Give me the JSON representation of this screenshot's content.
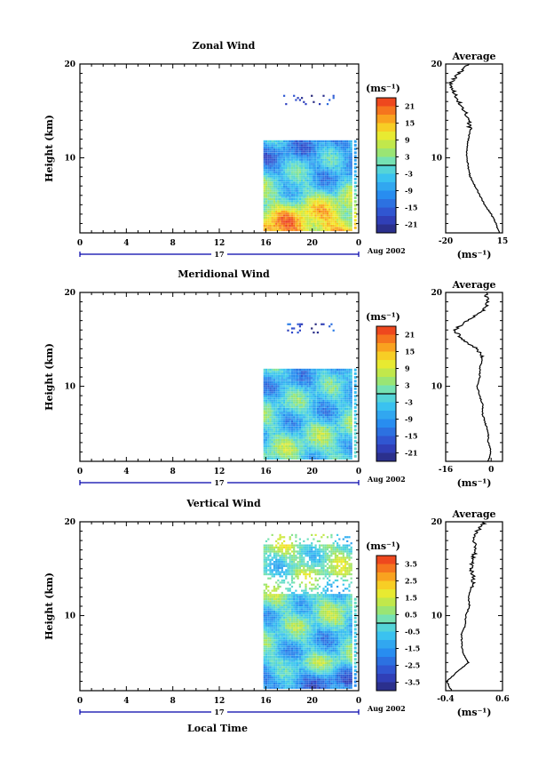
{
  "figure": {
    "date_label": "Aug 2002",
    "day_label": "17",
    "x_axis_label": "Local Time"
  },
  "panels": [
    {
      "key": "zonal",
      "title": "Zonal Wind",
      "ylabel": "Height (km)",
      "y_ticks": [
        "20",
        "10"
      ],
      "x_ticks": [
        "0",
        "4",
        "8",
        "12",
        "16",
        "20",
        "0"
      ],
      "unit_label": "(ms⁻¹)",
      "colorbar_ticks": [
        "21",
        "15",
        "9",
        "3",
        "-3",
        "-9",
        "-15",
        "-21"
      ],
      "profile_title": "Average",
      "profile_y_ticks": [
        "20",
        "10"
      ],
      "profile_x_ticks": [
        "-20",
        "15"
      ],
      "profile_unit": "(ms⁻¹)"
    },
    {
      "key": "meridional",
      "title": "Meridional Wind",
      "ylabel": "Height (km)",
      "y_ticks": [
        "20",
        "10"
      ],
      "x_ticks": [
        "0",
        "4",
        "8",
        "12",
        "16",
        "20",
        "0"
      ],
      "unit_label": "(ms⁻¹)",
      "colorbar_ticks": [
        "21",
        "15",
        "9",
        "3",
        "-3",
        "-9",
        "-15",
        "-21"
      ],
      "profile_title": "Average",
      "profile_y_ticks": [
        "20",
        "10"
      ],
      "profile_x_ticks": [
        "-16",
        "0"
      ],
      "profile_unit": "(ms⁻¹)"
    },
    {
      "key": "vertical",
      "title": "Vertical Wind",
      "ylabel": "Height (km)",
      "y_ticks": [
        "20",
        "10"
      ],
      "x_ticks": [
        "0",
        "4",
        "8",
        "12",
        "16",
        "20",
        "0"
      ],
      "unit_label": "(ms⁻¹)",
      "colorbar_ticks": [
        "3.5",
        "2.5",
        "1.5",
        "0.5",
        "-0.5",
        "-1.5",
        "-2.5",
        "-3.5"
      ],
      "profile_title": "Average",
      "profile_y_ticks": [
        "20",
        "10"
      ],
      "profile_x_ticks": [
        "-0.4",
        "0.6"
      ],
      "profile_unit": "(ms⁻¹)"
    }
  ],
  "chart_data": [
    {
      "type": "heatmap",
      "title": "Zonal Wind",
      "xlabel": "Local Time",
      "ylabel": "Height (km)",
      "xlim": [
        0,
        24
      ],
      "ylim": [
        2,
        20
      ],
      "zlim": [
        -24,
        24
      ],
      "time_coverage": [
        15.8,
        24
      ],
      "profile": {
        "title": "Average",
        "xlim": [
          -20,
          15
        ],
        "heights": [
          2,
          3,
          4,
          5,
          6,
          7,
          8,
          9,
          10,
          11,
          12,
          13,
          14,
          15,
          16,
          17,
          18,
          19,
          20
        ],
        "values": [
          13,
          11,
          8,
          4,
          1,
          -2,
          -5,
          -6,
          -7,
          -7,
          -6,
          -5,
          -6,
          -8,
          -12,
          -15,
          -17,
          -12,
          -6
        ]
      }
    },
    {
      "type": "heatmap",
      "title": "Meridional Wind",
      "xlabel": "Local Time",
      "ylabel": "Height (km)",
      "xlim": [
        0,
        24
      ],
      "ylim": [
        2,
        20
      ],
      "zlim": [
        -24,
        24
      ],
      "time_coverage": [
        15.8,
        24
      ],
      "profile": {
        "title": "Average",
        "xlim": [
          -16,
          4
        ],
        "heights": [
          2,
          3,
          4,
          5,
          6,
          7,
          8,
          9,
          10,
          11,
          12,
          13,
          14,
          15,
          16,
          17,
          18,
          19,
          20
        ],
        "values": [
          -1,
          0,
          -1,
          -1,
          -2,
          -3,
          -3,
          -4,
          -5,
          -4,
          -4,
          -3,
          -5,
          -10,
          -13,
          -8,
          -3,
          -1,
          -2
        ]
      }
    },
    {
      "type": "heatmap",
      "title": "Vertical Wind",
      "xlabel": "Local Time",
      "ylabel": "Height (km)",
      "xlim": [
        0,
        24
      ],
      "ylim": [
        2,
        20
      ],
      "zlim": [
        -4,
        4
      ],
      "time_coverage": [
        15.8,
        24
      ],
      "profile": {
        "title": "Average",
        "xlim": [
          -0.4,
          0.6
        ],
        "heights": [
          2,
          3,
          4,
          5,
          6,
          7,
          8,
          9,
          10,
          11,
          12,
          13,
          14,
          15,
          16,
          17,
          18,
          19,
          20
        ],
        "values": [
          -0.3,
          -0.38,
          -0.2,
          0.0,
          -0.1,
          -0.12,
          -0.12,
          -0.05,
          -0.05,
          0.02,
          0.0,
          0.05,
          0.1,
          0.05,
          0.08,
          0.12,
          0.1,
          0.15,
          0.3
        ]
      }
    }
  ]
}
